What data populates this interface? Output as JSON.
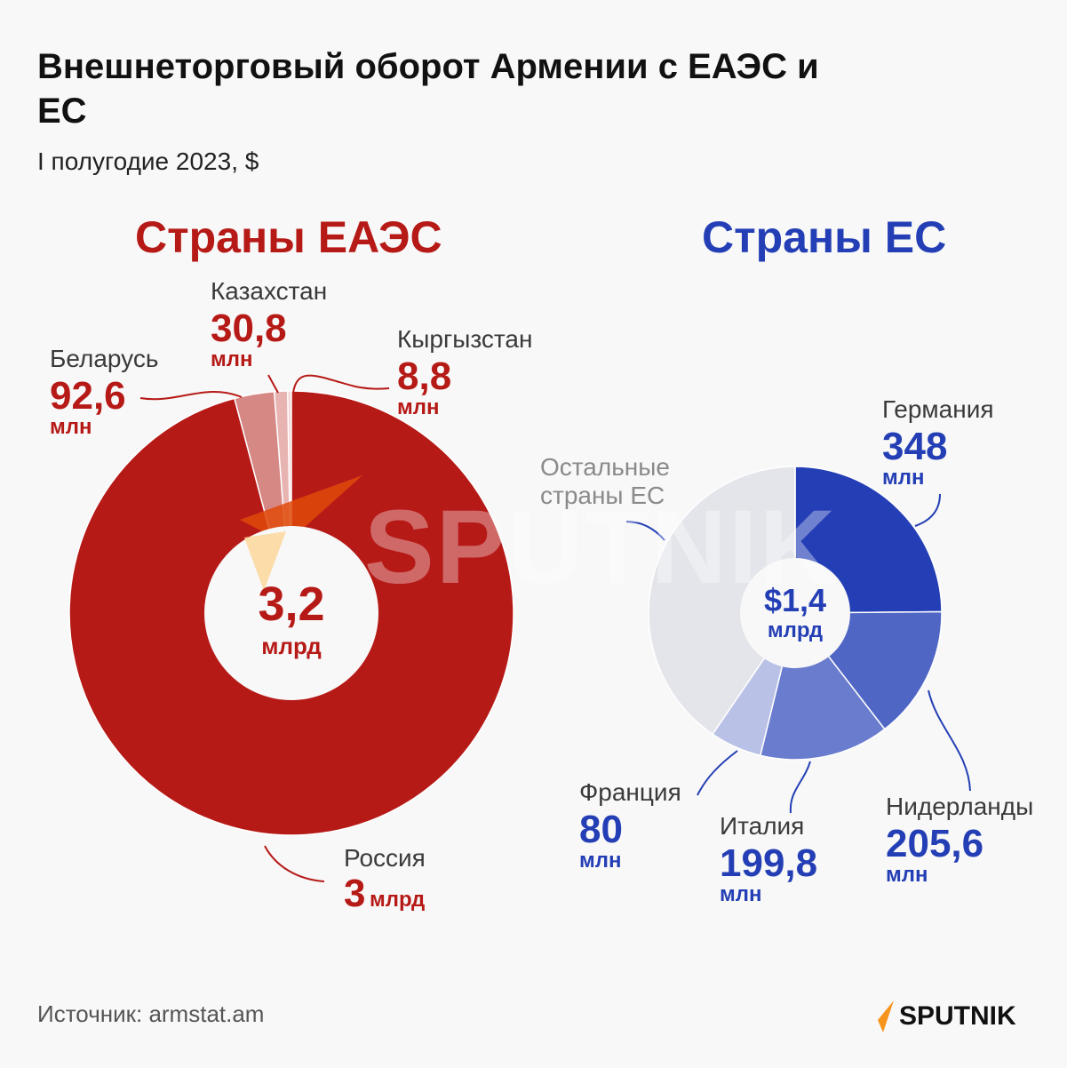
{
  "header": {
    "title": "Внешнеторговый оборот Армении с ЕАЭС и ЕС",
    "subtitle": "I полугодие 2023, $"
  },
  "sections": {
    "eaeu": {
      "title": "Страны ЕАЭС",
      "center_value": "3,2",
      "center_unit": "млрд"
    },
    "eu": {
      "title": "Страны ЕС",
      "center_value": "$1,4",
      "center_unit": "млрд"
    }
  },
  "labels": {
    "belarus": {
      "name": "Беларусь",
      "value": "92,6",
      "unit": "млн"
    },
    "kazakhstan": {
      "name": "Казахстан",
      "value": "30,8",
      "unit": "млн"
    },
    "kyrgyzstan": {
      "name": "Кыргызстан",
      "value": "8,8",
      "unit": "млн"
    },
    "russia": {
      "name": "Россия",
      "value": "3",
      "unit": "млрд"
    },
    "germany": {
      "name": "Германия",
      "value": "348",
      "unit": "млн"
    },
    "netherlands": {
      "name": "Нидерланды",
      "value": "205,6",
      "unit": "млн"
    },
    "italy": {
      "name": "Италия",
      "value": "199,8",
      "unit": "млн"
    },
    "france": {
      "name": "Франция",
      "value": "80",
      "unit": "млн"
    },
    "others": {
      "name_line1": "Остальные",
      "name_line2": "страны ЕС"
    }
  },
  "footer": {
    "source": "Источник: armstat.am",
    "logo_text": "SPUTNIK"
  },
  "watermark": "SPUTNIK",
  "colors": {
    "eaeu_red": "#b61a17",
    "eu_blue": "#243fb5",
    "logo_orange": "#f7941d"
  },
  "chart_data": [
    {
      "type": "pie",
      "subtype": "donut",
      "title": "Страны ЕАЭС",
      "center_label": "3,2 млрд",
      "unit": "USD million",
      "categories": [
        "Россия",
        "Беларусь",
        "Казахстан",
        "Кыргызстан"
      ],
      "values": [
        3067.8,
        92.6,
        30.8,
        8.8
      ],
      "value_labels": [
        "3 млрд",
        "92,6 млн",
        "30,8 млн",
        "8,8 млн"
      ],
      "total": 3200,
      "colors": [
        "#b61a17",
        "#d68885",
        "#e8b4b2",
        "#f1d6d5"
      ]
    },
    {
      "type": "pie",
      "subtype": "donut",
      "title": "Страны ЕС",
      "center_label": "$1,4 млрд",
      "unit": "USD million",
      "categories": [
        "Германия",
        "Нидерланды",
        "Италия",
        "Франция",
        "Остальные страны ЕС"
      ],
      "values": [
        348,
        205.6,
        199.8,
        80,
        566.6
      ],
      "value_labels": [
        "348 млн",
        "205,6 млн",
        "199,8 млн",
        "80 млн",
        ""
      ],
      "total": 1400,
      "colors": [
        "#243fb5",
        "#4f66c5",
        "#6a7ccd",
        "#b9c2e6",
        "#e4e5ea"
      ]
    }
  ]
}
